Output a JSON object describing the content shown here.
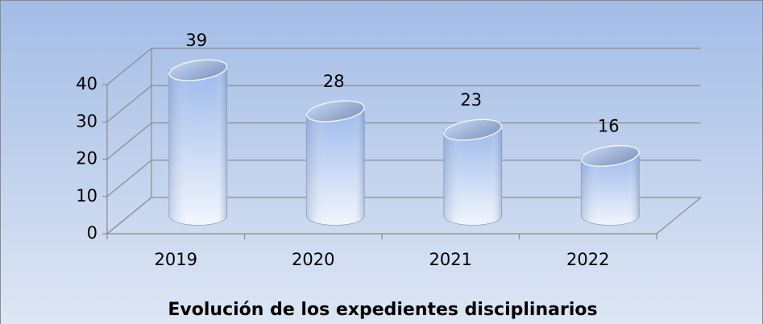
{
  "chart_data": {
    "type": "bar",
    "title": "Evolución de los expedientes disciplinarios",
    "categories": [
      "2019",
      "2020",
      "2021",
      "2022"
    ],
    "values": [
      39,
      28,
      23,
      16
    ],
    "color": "#a9c3ee",
    "ylim": [
      0,
      40
    ],
    "yticks": [
      0,
      10,
      20,
      30,
      40
    ],
    "grid": true
  }
}
